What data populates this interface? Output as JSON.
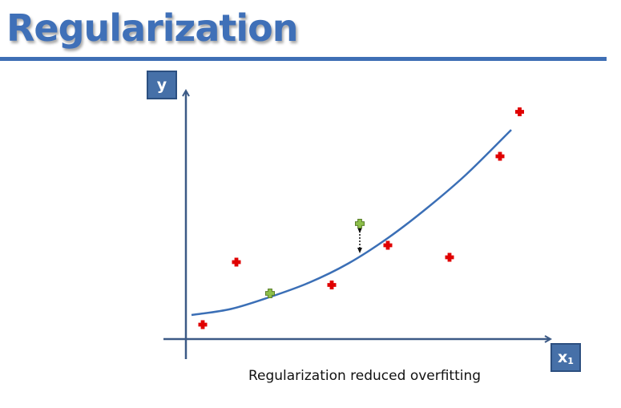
{
  "slide": {
    "title": "Regularization",
    "caption": "Regularization reduced overfitting"
  },
  "axes": {
    "y_label": "y",
    "x_label": "x",
    "x_subscript": "1"
  },
  "colors": {
    "title": "#3f70b8",
    "rule": "#3f6fb5",
    "axis": "#3c5a86",
    "curve": "#3b6fb6",
    "train_point": "#e00000",
    "test_point": "#8dbf4a",
    "label_box": "#4670a8"
  },
  "chart_data": {
    "type": "scatter",
    "series": [
      {
        "points": [
          [
            0.3,
            0.12
          ],
          [
            0.9,
            0.64
          ],
          [
            2.6,
            0.45
          ],
          [
            3.6,
            0.78
          ],
          [
            4.7,
            0.68
          ],
          [
            5.6,
            1.52
          ],
          [
            5.95,
            1.89
          ]
        ]
      },
      {
        "points": [
          [
            1.5,
            0.38
          ],
          [
            3.1,
            0.96
          ]
        ]
      }
    ],
    "curve": {
      "type": "line",
      "x": [
        0.1,
        0.8,
        1.5,
        2.2,
        2.9,
        3.6,
        4.3,
        5.0,
        5.8
      ],
      "y": [
        0.2,
        0.25,
        0.35,
        0.47,
        0.63,
        0.84,
        1.09,
        1.37,
        1.74
      ]
    },
    "error_indicator": {
      "x": 3.1,
      "from_y": 0.96,
      "to_y": 0.7
    },
    "xlim": [
      0,
      6.0
    ],
    "ylim": [
      0,
      2.0
    ]
  }
}
